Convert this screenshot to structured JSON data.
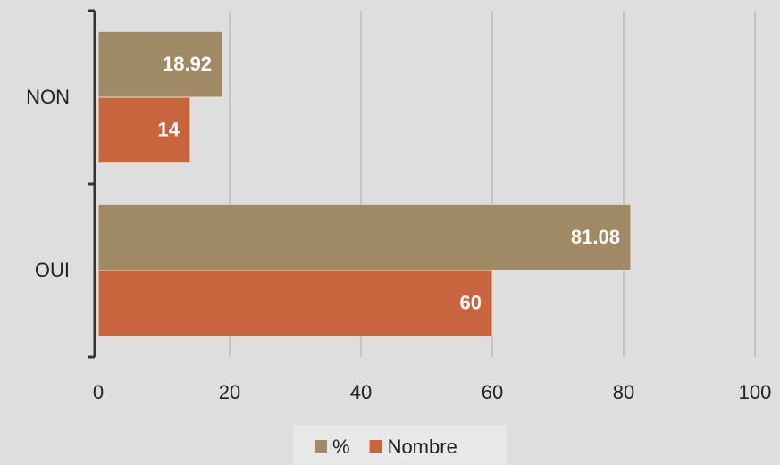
{
  "chart_data": {
    "type": "hbar",
    "categories": [
      "NON",
      "OUI"
    ],
    "series": [
      {
        "name": "%",
        "color": "#a08a65",
        "values": [
          18.92,
          81.08
        ]
      },
      {
        "name": "Nombre",
        "color": "#c8643e",
        "values": [
          14,
          60
        ]
      }
    ],
    "xlim": [
      0,
      100
    ],
    "xticks": [
      0,
      20,
      40,
      60,
      80,
      100
    ],
    "grid": true,
    "legend": "bottom"
  }
}
